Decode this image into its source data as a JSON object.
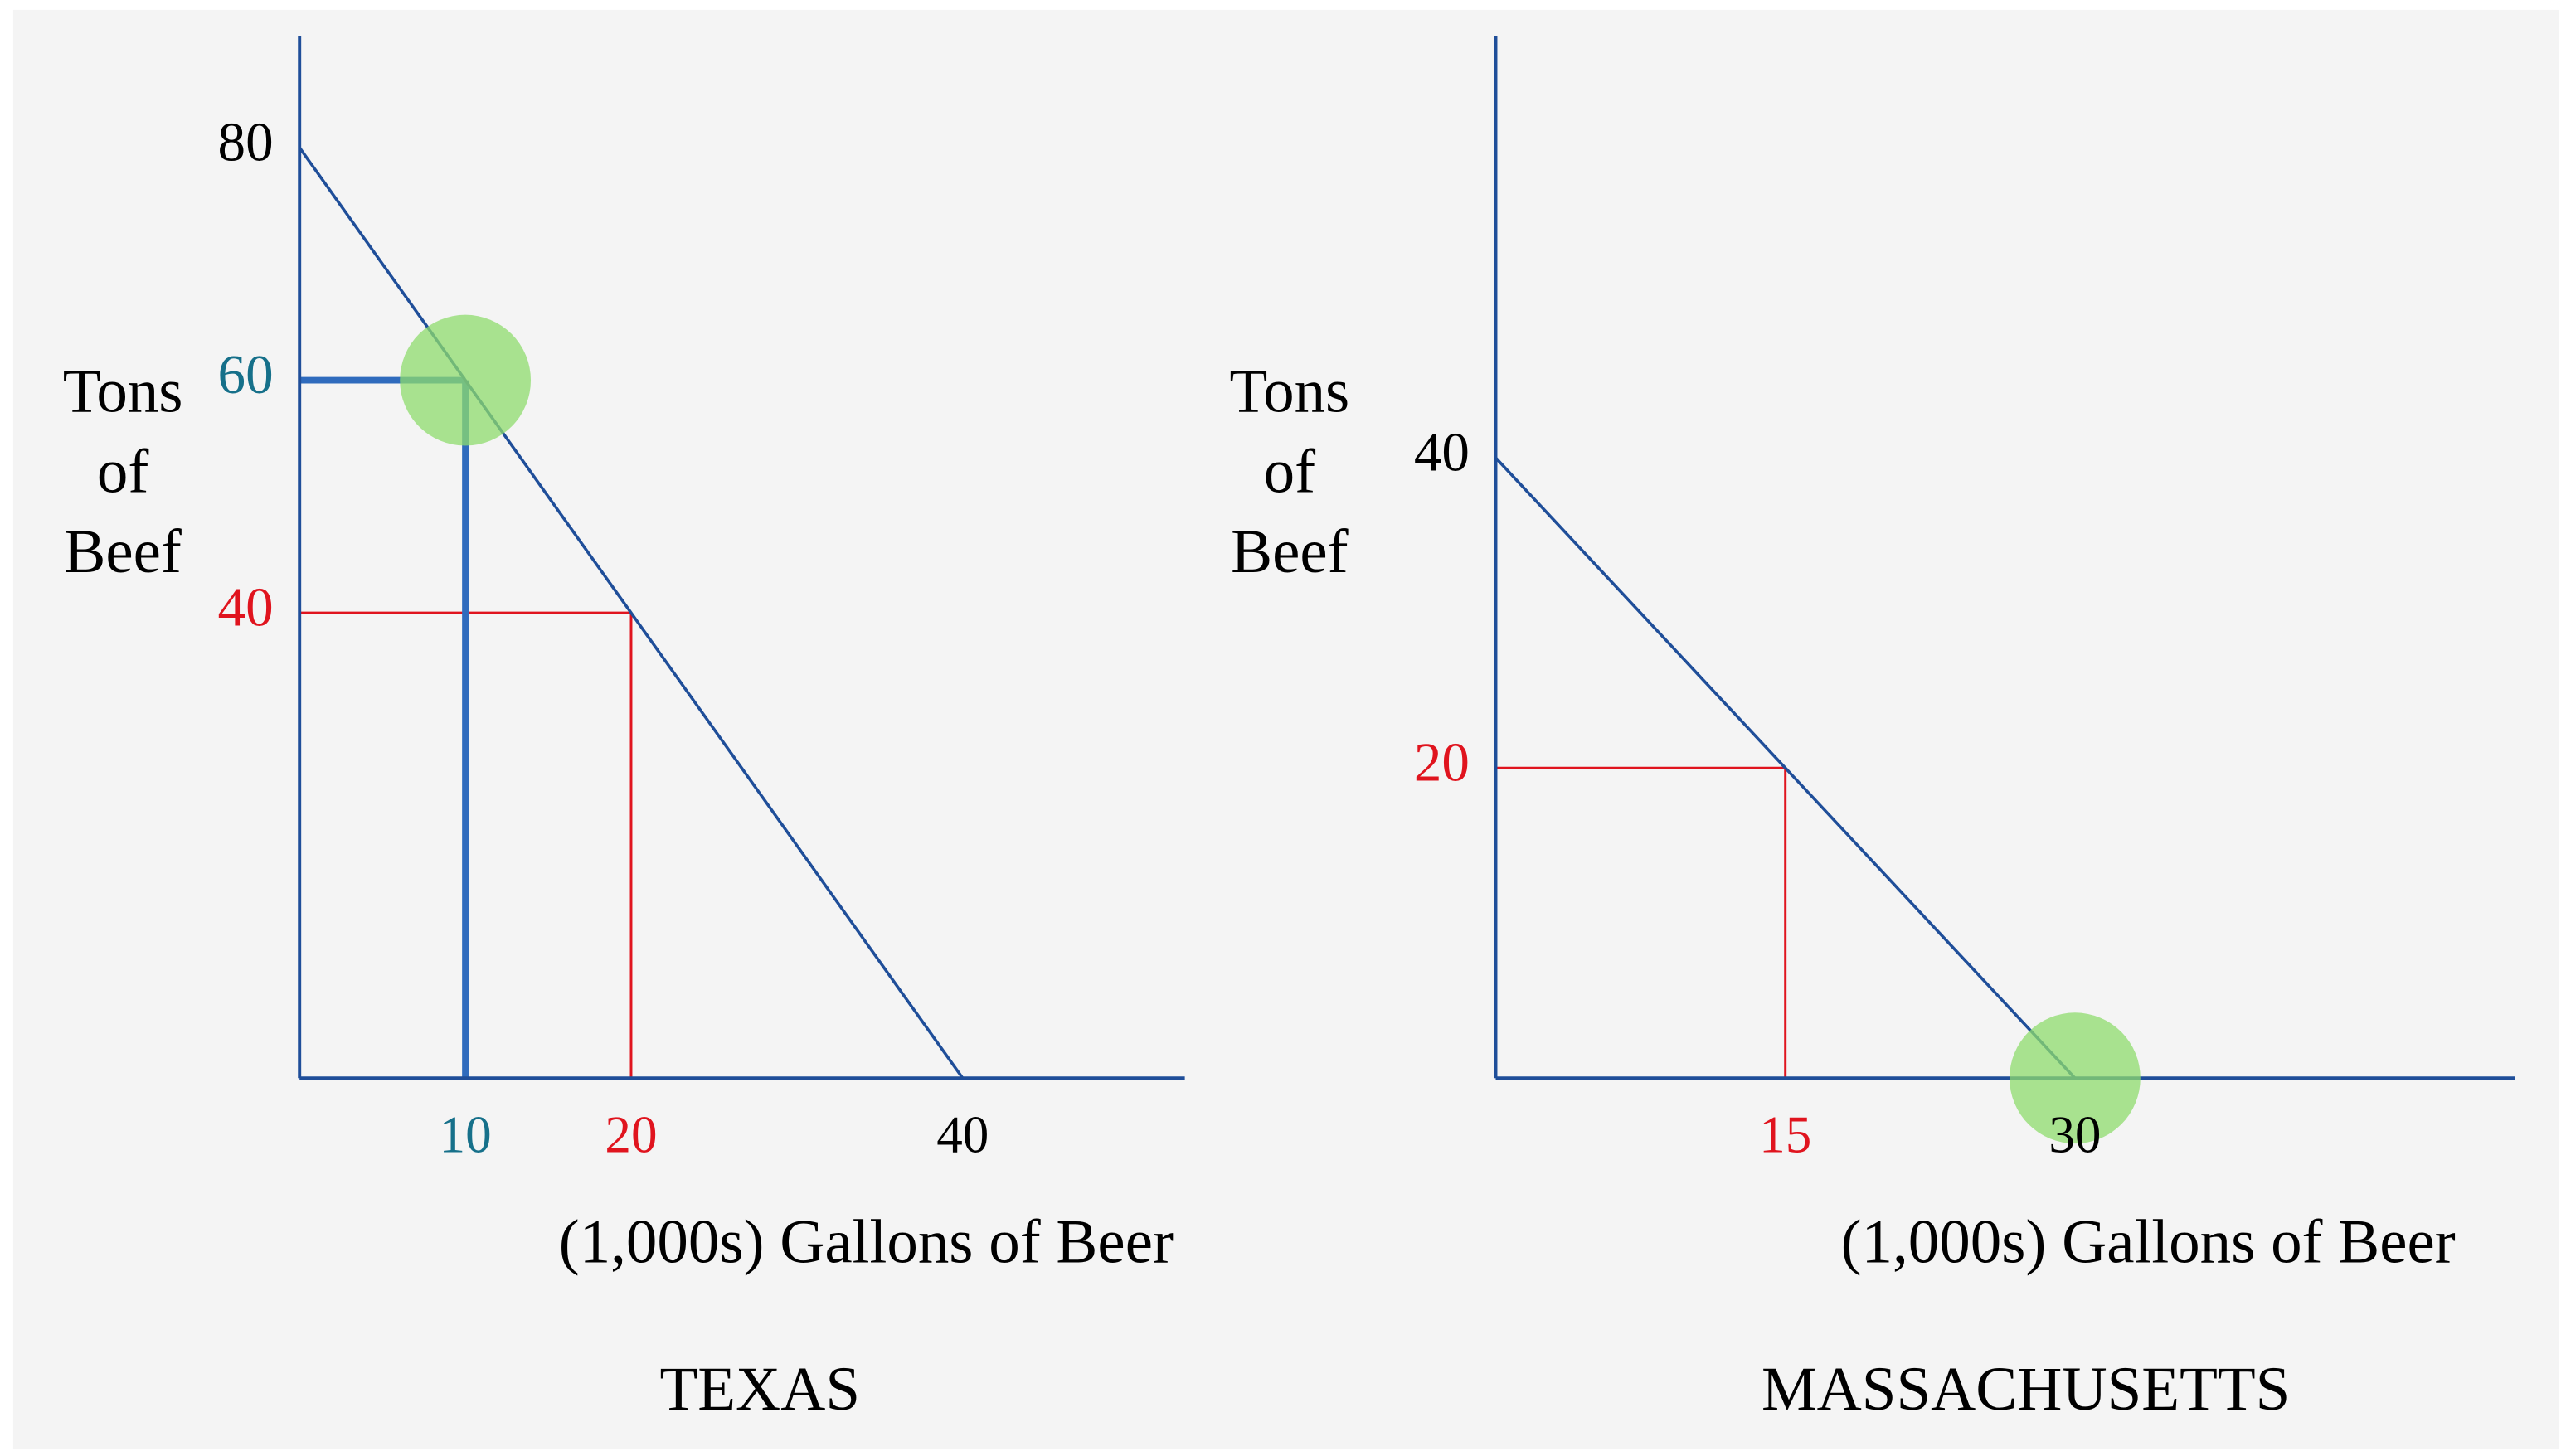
{
  "chart_data": [
    {
      "type": "line",
      "title": "TEXAS",
      "xlabel": "(1,000s) Gallons of Beer",
      "ylabel": [
        "Tons",
        "of",
        "Beef"
      ],
      "x": [
        0,
        40
      ],
      "series": [
        {
          "color": "#1f4e99",
          "values": [
            80,
            0
          ]
        }
      ],
      "xlim": [
        0,
        53.4
      ],
      "ylim": [
        0,
        89.6
      ],
      "xticks": [
        10,
        20,
        40
      ],
      "xtick_colors": [
        "#16708a",
        "#e0141e",
        "#000000"
      ],
      "yticks": [
        80,
        60,
        40
      ],
      "ytick_colors": [
        "#000000",
        "#16708a",
        "#e0141e"
      ],
      "guides": [
        {
          "x": 20,
          "y": 40,
          "color": "#e0141e"
        },
        {
          "x": 10,
          "y": 60,
          "color": "#2f6bbd",
          "bold": true
        }
      ],
      "highlight": {
        "x": 10,
        "y": 60,
        "color": "#8fdc6e"
      }
    },
    {
      "type": "line",
      "title": "MASSACHUSETTS",
      "xlabel": "(1,000s) Gallons of Beer",
      "ylabel": [
        "Tons",
        "of",
        "Beef"
      ],
      "x": [
        0,
        30
      ],
      "series": [
        {
          "color": "#1f4e99",
          "values": [
            40,
            0
          ]
        }
      ],
      "xlim": [
        0,
        52.8
      ],
      "ylim": [
        0,
        67.2
      ],
      "xticks": [
        15,
        30
      ],
      "xtick_colors": [
        "#e0141e",
        "#000000"
      ],
      "yticks": [
        40,
        20
      ],
      "ytick_colors": [
        "#000000",
        "#e0141e"
      ],
      "guides": [
        {
          "x": 15,
          "y": 20,
          "color": "#e0141e"
        }
      ],
      "highlight": {
        "x": 30,
        "y": 0,
        "color": "#8fdc6e"
      }
    }
  ]
}
